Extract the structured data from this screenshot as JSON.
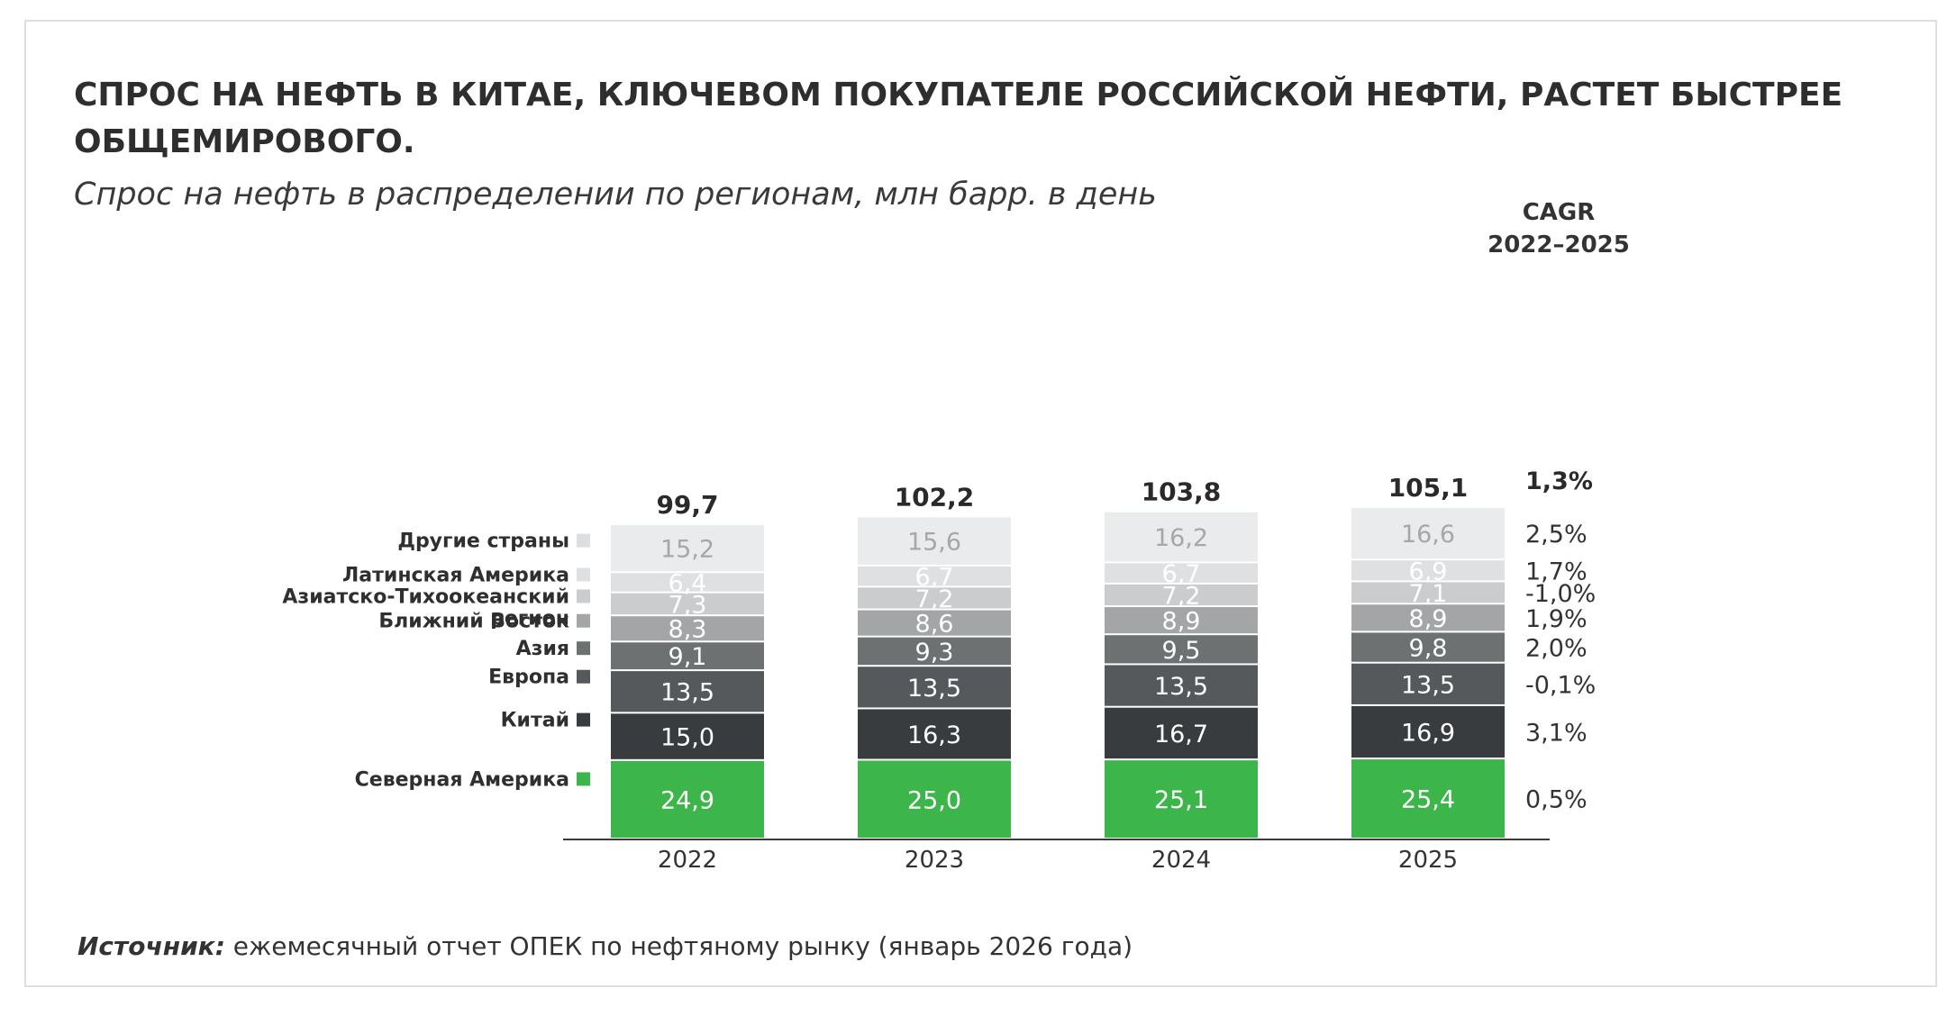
{
  "title": "СПРОС НА НЕФТЬ В КИТАЕ, КЛЮЧЕВОМ ПОКУПАТЕЛЕ РОССИЙСКОЙ НЕФТИ, РАСТЕТ БЫСТРЕЕ ОБЩЕМИРОВОГО.",
  "subtitle": "Спрос на нефть в распределении по регионам, млн барр. в день",
  "cagr_header": {
    "line1": "CAGR",
    "line2": "2022–2025"
  },
  "source": {
    "label": "Источник:",
    "text": "ежемесячный отчет ОПЕК по нефтяному рынку (январь 2026 года)"
  },
  "chart_data": {
    "type": "bar",
    "stacked": true,
    "title": "Спрос на нефть в распределении по регионам, млн барр. в день",
    "categories": [
      "2022",
      "2023",
      "2024",
      "2025"
    ],
    "totals": [
      "99,7",
      "102,2",
      "103,8",
      "105,1"
    ],
    "total_values": [
      99.7,
      102.2,
      103.8,
      105.1
    ],
    "total_cagr": "1,3%",
    "series": [
      {
        "name": "Северная Америка",
        "values": [
          24.9,
          25.0,
          25.1,
          25.4
        ],
        "labels": [
          "24,9",
          "25,0",
          "25,1",
          "25,4"
        ],
        "cagr": "0,5%",
        "color": "#3cb54a",
        "text_color": "#ffffff"
      },
      {
        "name": "Китай",
        "values": [
          15.0,
          16.3,
          16.7,
          16.9
        ],
        "labels": [
          "15,0",
          "16,3",
          "16,7",
          "16,9"
        ],
        "cagr": "3,1%",
        "color": "#393c3f",
        "text_color": "#ffffff"
      },
      {
        "name": "Европа",
        "values": [
          13.5,
          13.5,
          13.5,
          13.5
        ],
        "labels": [
          "13,5",
          "13,5",
          "13,5",
          "13,5"
        ],
        "cagr": "-0,1%",
        "color": "#56595b",
        "text_color": "#ffffff"
      },
      {
        "name": "Азия",
        "values": [
          9.1,
          9.3,
          9.5,
          9.8
        ],
        "labels": [
          "9,1",
          "9,3",
          "9,5",
          "9,8"
        ],
        "cagr": "2,0%",
        "color": "#6d7172",
        "text_color": "#ffffff"
      },
      {
        "name": "Ближний Восток",
        "values": [
          8.3,
          8.6,
          8.9,
          8.9
        ],
        "labels": [
          "8,3",
          "8,6",
          "8,9",
          "8,9"
        ],
        "cagr": "1,9%",
        "color": "#a3a5a6",
        "text_color": "#ffffff"
      },
      {
        "name": "Азиатско-Тихоокеанский регион",
        "values": [
          7.3,
          7.2,
          7.2,
          7.1
        ],
        "labels": [
          "7,3",
          "7,2",
          "7,2",
          "7,1"
        ],
        "cagr": "-1,0%",
        "color": "#cbcccd",
        "text_color": "#ffffff"
      },
      {
        "name": "Латинская Америка",
        "values": [
          6.4,
          6.7,
          6.7,
          6.9
        ],
        "labels": [
          "6,4",
          "6,7",
          "6,7",
          "6,9"
        ],
        "cagr": "1,7%",
        "color": "#dfe0e1",
        "text_color": "#ffffff"
      },
      {
        "name": "Другие страны",
        "values": [
          15.2,
          15.6,
          16.2,
          16.6
        ],
        "labels": [
          "15,2",
          "15,6",
          "16,2",
          "16,6"
        ],
        "cagr": "2,5%",
        "color": "#e9ebec",
        "text_color": "#a5a7a9"
      }
    ],
    "category_label_lines": [
      [
        "Северная Америка"
      ],
      [
        "Китай"
      ],
      [
        "Европа"
      ],
      [
        "Азия"
      ],
      [
        "Ближний Восток"
      ],
      [
        "Азиатско-Тихоокеанский",
        "регион"
      ],
      [
        "Латинская Америка"
      ],
      [
        "Другие страны"
      ]
    ],
    "legend": "left",
    "grid": false
  }
}
